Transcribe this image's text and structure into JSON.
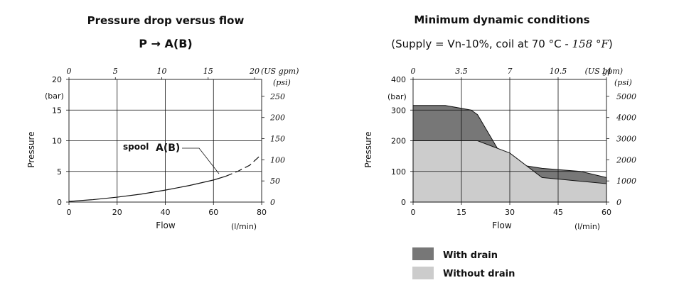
{
  "chart_data": [
    {
      "type": "line",
      "title": "Pressure drop versus flow",
      "subtitle": "P → A(B)",
      "xlabel": "Flow",
      "xunit": "(l/min)",
      "ylabel": "Pressure",
      "yunit": "(bar)",
      "x_secondary_unit": "(US gpm)",
      "y_secondary_unit": "(psi)",
      "xlim": [
        0,
        80
      ],
      "ylim": [
        0,
        20
      ],
      "x_ticks": [
        "0",
        "20",
        "40",
        "60",
        "80"
      ],
      "y_ticks": [
        "0",
        "5",
        "10",
        "15",
        "20"
      ],
      "x_secondary_ticks": [
        "0",
        "5",
        "10",
        "15",
        "20"
      ],
      "y_secondary_ticks": [
        "0",
        "50",
        "100",
        "150",
        "200",
        "250"
      ],
      "grid": true,
      "annotation": {
        "label": "spool",
        "label2": "A(B)"
      },
      "series": [
        {
          "name": "A(B)",
          "x": [
            0,
            10,
            20,
            30,
            40,
            50,
            60,
            65
          ],
          "y": [
            0.1,
            0.4,
            0.8,
            1.3,
            1.95,
            2.7,
            3.6,
            4.2
          ],
          "dashed_x": [
            65,
            70,
            75,
            80
          ],
          "dashed_y": [
            4.2,
            5.0,
            6.0,
            7.8
          ]
        }
      ]
    },
    {
      "type": "area",
      "title": "Minimum dynamic conditions",
      "subtitle_prefix": "(Supply = Vn-10%, coil at 70 °C - ",
      "subtitle_italic": "158 °F",
      "subtitle_suffix": ")",
      "xlabel": "Flow",
      "xunit": "(l/min)",
      "ylabel": "Pressure",
      "yunit": "(bar)",
      "x_secondary_unit": "(US gpm)",
      "y_secondary_unit": "(psi)",
      "xlim": [
        0,
        60
      ],
      "ylim": [
        0,
        400
      ],
      "x_ticks": [
        "0",
        "15",
        "30",
        "45",
        "60"
      ],
      "y_ticks": [
        "0",
        "100",
        "200",
        "300",
        "400"
      ],
      "x_secondary_ticks": [
        "0",
        "3.5",
        "7",
        "10.5",
        "14"
      ],
      "y_secondary_ticks": [
        "0",
        "1000",
        "2000",
        "3000",
        "4000",
        "5000"
      ],
      "grid": true,
      "series": [
        {
          "name": "With drain",
          "color": "#777777",
          "x": [
            0,
            10,
            18,
            20,
            27,
            34,
            40,
            52,
            60
          ],
          "y": [
            315,
            315,
            300,
            285,
            160,
            120,
            110,
            100,
            80
          ]
        },
        {
          "name": "Without drain",
          "color": "#cccccc",
          "x": [
            0,
            20,
            30,
            40,
            50,
            60
          ],
          "y": [
            200,
            200,
            160,
            80,
            70,
            60
          ]
        }
      ]
    }
  ]
}
